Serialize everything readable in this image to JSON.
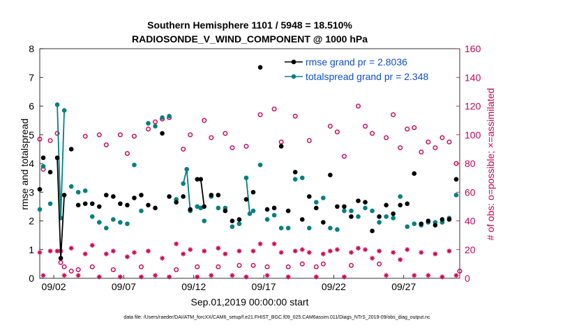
{
  "chart_data": {
    "type": "line",
    "title": "Southern Hemisphere 1101 / 5948 = 18.510%",
    "subtitle": "RADIOSONDE_V_WIND_COMPONENT @ 1000 hPa",
    "xlabel": "Sep.01,2019 00:00:00 start",
    "ylabel": "rmse and totalspread",
    "y2label": "# of obs: o=possible; ×=assimilated",
    "footer": "data file: /Users/raeder/DAI/ATM_forcXX/CAM6_setup/f.e21.FHIST_BGC.f09_025.CAM6assim.011/Diags_NTrS_2019-09/obs_diag_output.nc",
    "xlim": [
      1.0,
      31.0
    ],
    "ylim": [
      0,
      8
    ],
    "y2lim": [
      0,
      160
    ],
    "yticks": [
      "0",
      "1",
      "2",
      "3",
      "4",
      "5",
      "6",
      "7",
      "8"
    ],
    "y2ticks": [
      "0",
      "20",
      "40",
      "60",
      "80",
      "100",
      "120",
      "140",
      "160"
    ],
    "xticks": [
      {
        "label": "09/02",
        "x": 2.0
      },
      {
        "label": "09/07",
        "x": 7.0
      },
      {
        "label": "09/12",
        "x": 12.0
      },
      {
        "label": "09/17",
        "x": 17.0
      },
      {
        "label": "09/22",
        "x": 22.0
      },
      {
        "label": "09/27",
        "x": 27.0
      }
    ],
    "legend": {
      "rmse": "rmse grand pr = 2.8036",
      "spread": "totalspread grand pr = 2.348"
    },
    "colors": {
      "rmse": "#000000",
      "spread": "#008080",
      "obs": "#cc0055"
    },
    "rmse": [
      [
        1.0,
        3.1
      ],
      [
        1.25,
        4.2
      ],
      [
        1.75,
        3.7
      ],
      [
        2.25,
        4.2
      ],
      [
        2.5,
        0.7
      ],
      [
        2.75,
        2.9
      ],
      [
        3.25,
        4.5
      ],
      [
        3.75,
        2.55
      ],
      [
        4.25,
        2.6
      ],
      [
        4.75,
        2.6
      ],
      [
        5.25,
        2.5
      ],
      [
        5.75,
        2.9
      ],
      [
        6.25,
        2.85
      ],
      [
        6.75,
        2.6
      ],
      [
        7.25,
        2.55
      ],
      [
        7.75,
        2.8
      ],
      [
        8.25,
        2.9
      ],
      [
        8.75,
        2.55
      ],
      [
        9.25,
        2.45
      ],
      [
        9.75,
        5.05
      ],
      [
        10.25,
        2.85
      ],
      [
        10.75,
        2.65
      ],
      [
        11.25,
        2.85
      ],
      [
        11.75,
        2.4
      ],
      [
        12.25,
        3.45
      ],
      [
        12.5,
        3.45
      ],
      [
        12.75,
        2.5
      ],
      [
        13.25,
        2.9
      ],
      [
        13.75,
        2.9
      ],
      [
        14.25,
        2.35
      ],
      [
        14.75,
        2.0
      ],
      [
        15.25,
        2.05
      ],
      [
        15.75,
        2.75
      ],
      [
        16.25,
        3.0
      ],
      [
        16.75,
        7.35
      ],
      [
        17.25,
        2.4
      ],
      [
        17.75,
        2.45
      ],
      [
        18.25,
        4.6
      ],
      [
        18.75,
        2.35
      ],
      [
        19.25,
        3.7
      ],
      [
        19.75,
        2.05
      ],
      [
        20.25,
        2.85
      ],
      [
        20.75,
        2.45
      ],
      [
        21.25,
        1.95
      ],
      [
        21.75,
        3.6
      ],
      [
        22.25,
        2.5
      ],
      [
        22.75,
        2.5
      ],
      [
        23.25,
        2.15
      ],
      [
        23.75,
        2.7
      ],
      [
        24.25,
        2.65
      ],
      [
        24.75,
        1.65
      ],
      [
        25.25,
        2.15
      ],
      [
        25.75,
        2.55
      ],
      [
        26.25,
        2.25
      ],
      [
        26.75,
        2.55
      ],
      [
        27.25,
        2.6
      ],
      [
        27.75,
        3.65
      ],
      [
        28.25,
        1.9
      ],
      [
        28.75,
        2.0
      ],
      [
        29.25,
        1.85
      ],
      [
        29.75,
        2.05
      ],
      [
        30.25,
        2.05
      ],
      [
        30.75,
        3.45
      ]
    ],
    "rmse_lines": [
      [
        [
          2.25,
          4.2
        ],
        [
          2.5,
          0.7
        ],
        [
          2.75,
          2.9
        ]
      ],
      [
        [
          12.25,
          3.45
        ],
        [
          12.5,
          3.45
        ],
        [
          12.75,
          2.5
        ]
      ]
    ],
    "spread": [
      [
        1.0,
        2.4
      ],
      [
        1.25,
        3.9
      ],
      [
        1.75,
        2.6
      ],
      [
        2.25,
        6.05
      ],
      [
        2.5,
        2.1
      ],
      [
        2.75,
        5.85
      ],
      [
        3.25,
        3.2
      ],
      [
        3.75,
        3.0
      ],
      [
        4.25,
        3.05
      ],
      [
        4.75,
        2.15
      ],
      [
        5.25,
        1.95
      ],
      [
        5.75,
        1.75
      ],
      [
        6.25,
        2.05
      ],
      [
        6.75,
        1.95
      ],
      [
        7.25,
        1.9
      ],
      [
        7.75,
        3.95
      ],
      [
        8.25,
        2.35
      ],
      [
        8.75,
        5.4
      ],
      [
        9.25,
        5.3
      ],
      [
        9.75,
        5.6
      ],
      [
        10.25,
        5.65
      ],
      [
        10.75,
        2.75
      ],
      [
        11.25,
        3.3
      ],
      [
        11.5,
        3.8
      ],
      [
        11.75,
        2.35
      ],
      [
        12.25,
        2.5
      ],
      [
        12.5,
        2.45
      ],
      [
        12.75,
        2.0
      ],
      [
        13.25,
        2.85
      ],
      [
        13.75,
        2.45
      ],
      [
        14.25,
        2.45
      ],
      [
        14.75,
        1.8
      ],
      [
        15.25,
        1.9
      ],
      [
        15.75,
        3.5
      ],
      [
        16.0,
        2.25
      ],
      [
        16.25,
        2.35
      ],
      [
        16.75,
        3.95
      ],
      [
        17.25,
        2.05
      ],
      [
        17.75,
        2.2
      ],
      [
        18.25,
        1.75
      ],
      [
        18.75,
        1.75
      ],
      [
        19.25,
        3.45
      ],
      [
        19.75,
        3.5
      ],
      [
        20.25,
        1.75
      ],
      [
        20.75,
        2.65
      ],
      [
        21.25,
        2.8
      ],
      [
        21.75,
        1.75
      ],
      [
        22.25,
        1.7
      ],
      [
        22.75,
        2.35
      ],
      [
        23.25,
        2.35
      ],
      [
        23.75,
        2.15
      ],
      [
        24.25,
        2.45
      ],
      [
        24.75,
        2.35
      ],
      [
        25.25,
        1.95
      ],
      [
        25.75,
        2.15
      ],
      [
        26.25,
        2.1
      ],
      [
        26.75,
        2.85
      ],
      [
        27.25,
        1.8
      ],
      [
        27.75,
        1.9
      ],
      [
        28.25,
        1.85
      ],
      [
        28.75,
        1.95
      ],
      [
        29.25,
        1.95
      ],
      [
        29.75,
        1.95
      ],
      [
        30.25,
        2.1
      ],
      [
        30.75,
        2.9
      ]
    ],
    "spread_lines": [
      [
        [
          2.25,
          6.05
        ],
        [
          2.5,
          2.1
        ],
        [
          2.75,
          5.85
        ]
      ],
      [
        [
          11.25,
          3.3
        ],
        [
          11.5,
          3.8
        ],
        [
          11.75,
          2.35
        ]
      ],
      [
        [
          15.75,
          3.5
        ],
        [
          16.0,
          2.25
        ],
        [
          16.25,
          2.35
        ]
      ]
    ],
    "possible": [
      [
        1.0,
        97
      ],
      [
        1.25,
        76
      ],
      [
        1.75,
        96
      ],
      [
        2.25,
        101
      ],
      [
        2.5,
        11
      ],
      [
        2.75,
        8
      ],
      [
        3.25,
        5
      ],
      [
        3.75,
        6
      ],
      [
        4.25,
        99
      ],
      [
        4.75,
        8
      ],
      [
        5.25,
        100
      ],
      [
        5.75,
        93
      ],
      [
        6.25,
        6
      ],
      [
        6.75,
        100
      ],
      [
        7.25,
        87
      ],
      [
        7.75,
        99
      ],
      [
        8.25,
        8
      ],
      [
        8.75,
        104
      ],
      [
        9.25,
        109
      ],
      [
        9.75,
        111
      ],
      [
        10.25,
        112
      ],
      [
        10.75,
        6
      ],
      [
        11.25,
        90
      ],
      [
        11.75,
        100
      ],
      [
        12.25,
        8
      ],
      [
        12.75,
        110
      ],
      [
        13.25,
        98
      ],
      [
        13.75,
        8
      ],
      [
        14.25,
        101
      ],
      [
        14.75,
        91
      ],
      [
        15.25,
        9
      ],
      [
        15.75,
        92
      ],
      [
        16.25,
        9
      ],
      [
        16.75,
        114
      ],
      [
        17.25,
        8
      ],
      [
        17.75,
        118
      ],
      [
        18.25,
        95
      ],
      [
        18.75,
        8
      ],
      [
        19.25,
        113
      ],
      [
        19.75,
        10
      ],
      [
        20.25,
        96
      ],
      [
        20.75,
        8
      ],
      [
        21.25,
        10
      ],
      [
        21.75,
        106
      ],
      [
        22.25,
        102
      ],
      [
        22.75,
        85
      ],
      [
        23.25,
        9
      ],
      [
        23.75,
        120
      ],
      [
        24.25,
        106
      ],
      [
        24.75,
        101
      ],
      [
        25.25,
        10
      ],
      [
        25.75,
        98
      ],
      [
        26.25,
        114
      ],
      [
        26.75,
        91
      ],
      [
        27.25,
        104
      ],
      [
        27.75,
        105
      ],
      [
        28.25,
        88
      ],
      [
        28.75,
        95
      ],
      [
        29.25,
        91
      ],
      [
        29.75,
        98
      ],
      [
        30.25,
        95
      ],
      [
        30.75,
        80
      ],
      [
        31.0,
        5
      ]
    ],
    "assimilated": [
      [
        1.0,
        18
      ],
      [
        1.25,
        2
      ],
      [
        1.75,
        19
      ],
      [
        2.25,
        19
      ],
      [
        2.5,
        19
      ],
      [
        2.75,
        2
      ],
      [
        3.25,
        21
      ],
      [
        3.75,
        2
      ],
      [
        4.25,
        17
      ],
      [
        4.75,
        23
      ],
      [
        5.25,
        1
      ],
      [
        5.75,
        17
      ],
      [
        6.25,
        19
      ],
      [
        6.75,
        1
      ],
      [
        7.25,
        15
      ],
      [
        7.75,
        18
      ],
      [
        8.25,
        1
      ],
      [
        8.75,
        19
      ],
      [
        9.25,
        2
      ],
      [
        9.75,
        14
      ],
      [
        10.25,
        1
      ],
      [
        10.75,
        24
      ],
      [
        11.25,
        17
      ],
      [
        11.75,
        20
      ],
      [
        12.25,
        1
      ],
      [
        12.75,
        19
      ],
      [
        13.25,
        2
      ],
      [
        13.75,
        21
      ],
      [
        14.25,
        17
      ],
      [
        14.75,
        2
      ],
      [
        15.25,
        19
      ],
      [
        15.75,
        1
      ],
      [
        16.25,
        19
      ],
      [
        16.75,
        24
      ],
      [
        17.25,
        2
      ],
      [
        17.75,
        24
      ],
      [
        18.25,
        18
      ],
      [
        18.75,
        1
      ],
      [
        19.25,
        19
      ],
      [
        19.75,
        20
      ],
      [
        20.25,
        18
      ],
      [
        20.75,
        1
      ],
      [
        21.25,
        17
      ],
      [
        21.75,
        19
      ],
      [
        22.25,
        20
      ],
      [
        22.75,
        1
      ],
      [
        23.25,
        18
      ],
      [
        23.75,
        21
      ],
      [
        24.25,
        20
      ],
      [
        24.75,
        14
      ],
      [
        25.25,
        19
      ],
      [
        25.75,
        2
      ],
      [
        26.25,
        18
      ],
      [
        26.75,
        13
      ],
      [
        27.25,
        20
      ],
      [
        27.75,
        2
      ],
      [
        28.25,
        18
      ],
      [
        28.75,
        2
      ],
      [
        29.25,
        17
      ],
      [
        29.75,
        1
      ],
      [
        30.25,
        19
      ],
      [
        30.75,
        2
      ]
    ]
  }
}
